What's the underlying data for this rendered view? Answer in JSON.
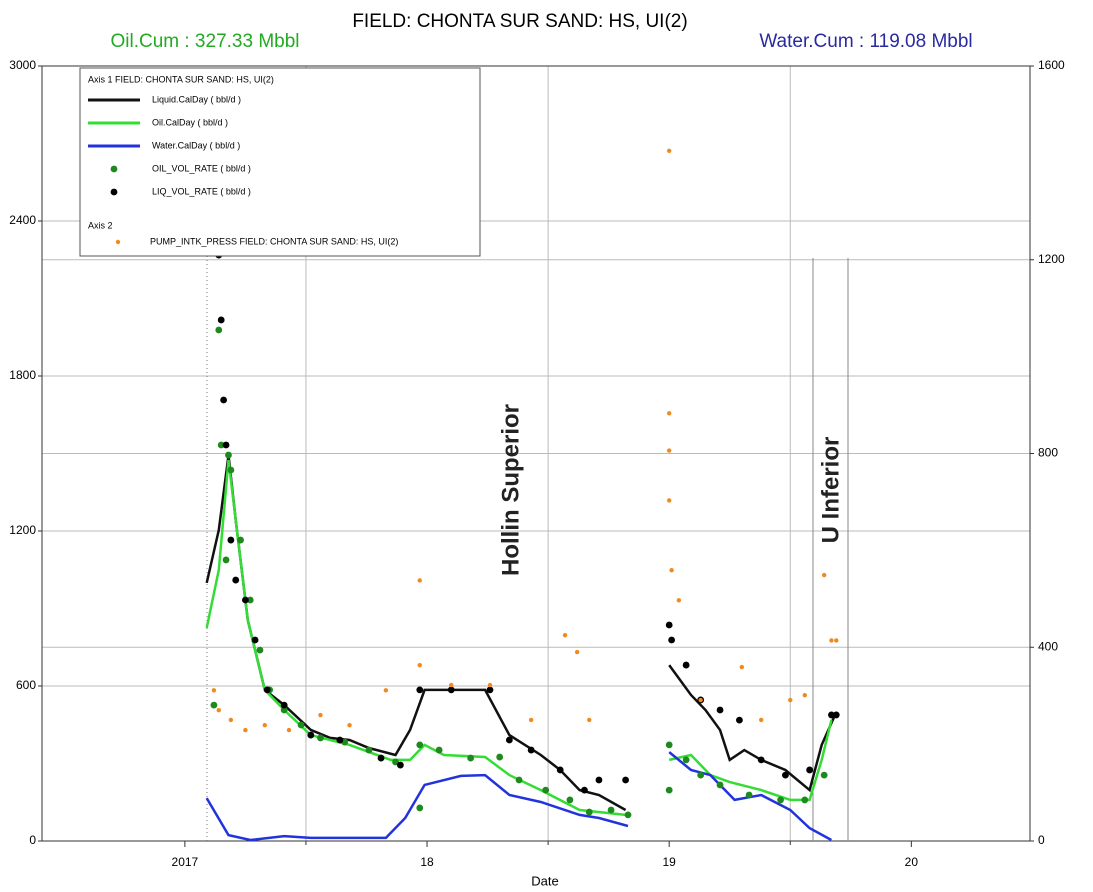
{
  "chart_data": {
    "type": "line",
    "title": "FIELD: CHONTA SUR  SAND: HS, UI(2)",
    "oil_cum": "Oil.Cum : 327.33 Mbbl",
    "water_cum": "Water.Cum : 119.08 Mbbl",
    "xlabel": "Date",
    "annotations": [
      "Hollin Superior",
      "U Inferior"
    ],
    "legend_axis1": "Axis 1  FIELD: CHONTA SUR  SAND: HS, UI(2)",
    "legend_axis2": "Axis 2",
    "xlim": [
      2016.41,
      2020.49
    ],
    "xticks": [
      {
        "value": 2017,
        "label": "2017"
      },
      {
        "value": 2018,
        "label": "18"
      },
      {
        "value": 2019,
        "label": "19"
      },
      {
        "value": 2020,
        "label": "20"
      }
    ],
    "xgrid": [
      2017.5,
      2018.5,
      2019.5
    ],
    "ylim": [
      0,
      3000
    ],
    "yticks": [
      0,
      600,
      1200,
      1800,
      2400,
      3000
    ],
    "y2lim": [
      0,
      1600
    ],
    "y2ticks": [
      0,
      400,
      800,
      1200,
      1600
    ],
    "grid": true,
    "series": [
      {
        "name": "Liquid.CalDay ( bbl/d )",
        "type": "line",
        "color": "#111111",
        "x": [
          2017.09,
          2017.14,
          2017.18,
          2017.21,
          2017.26,
          2017.33,
          2017.41,
          2017.52,
          2017.6,
          2017.68,
          2017.76,
          2017.87,
          2017.93,
          2017.99,
          2018.24,
          2018.34,
          2018.47,
          2018.55,
          2018.63,
          2018.71,
          2018.82,
          2018.9,
          2019.0,
          2019.09,
          2019.15,
          2019.21,
          2019.25,
          2019.31,
          2019.38,
          2019.48,
          2019.58,
          2019.63,
          2019.69
        ],
        "values": [
          999,
          1204,
          1494,
          1243,
          855,
          585,
          526,
          430,
          399,
          391,
          360,
          333,
          430,
          585,
          585,
          410,
          333,
          275,
          197,
          178,
          120,
          null,
          681,
          565,
          507,
          430,
          314,
          352,
          314,
          275,
          197,
          372,
          499
        ]
      },
      {
        "name": "Oil.CalDay ( bbl/d )",
        "type": "line",
        "color": "#33dd33",
        "x": [
          2017.09,
          2017.14,
          2017.18,
          2017.26,
          2017.33,
          2017.41,
          2017.52,
          2017.68,
          2017.85,
          2017.93,
          2017.99,
          2018.07,
          2018.24,
          2018.34,
          2018.47,
          2018.63,
          2018.82,
          2018.9,
          2019.0,
          2019.09,
          2019.17,
          2019.25,
          2019.38,
          2019.5,
          2019.58,
          2019.63,
          2019.67
        ],
        "values": [
          825,
          1049,
          1475,
          855,
          585,
          507,
          410,
          372,
          314,
          314,
          372,
          333,
          325,
          255,
          197,
          120,
          101,
          null,
          314,
          333,
          255,
          228,
          197,
          159,
          159,
          314,
          468
        ]
      },
      {
        "name": "Water.CalDay ( bbl/d )",
        "type": "line",
        "color": "#2233dd",
        "x": [
          2017.09,
          2017.18,
          2017.27,
          2017.41,
          2017.52,
          2017.83,
          2017.91,
          2017.99,
          2018.14,
          2018.24,
          2018.34,
          2018.47,
          2018.63,
          2018.71,
          2018.83,
          2018.9,
          2019.0,
          2019.09,
          2019.17,
          2019.27,
          2019.38,
          2019.5,
          2019.58,
          2019.67
        ],
        "values": [
          166,
          23,
          4,
          19,
          12,
          12,
          89,
          217,
          252,
          255,
          178,
          151,
          101,
          89,
          58,
          null,
          344,
          275,
          255,
          159,
          178,
          120,
          50,
          4
        ]
      },
      {
        "name": "OIL_VOL_RATE ( bbl/d )",
        "type": "scatter",
        "color": "#1e8a1e",
        "x": [
          2017.12,
          2017.14,
          2017.15,
          2017.17,
          2017.18,
          2017.19,
          2017.23,
          2017.27,
          2017.31,
          2017.35,
          2017.41,
          2017.48,
          2017.56,
          2017.66,
          2017.76,
          2017.87,
          2017.97,
          2017.97,
          2018.05,
          2018.18,
          2018.3,
          2018.38,
          2018.49,
          2018.59,
          2018.67,
          2018.76,
          2018.83,
          2019.0,
          2019.0,
          2019.07,
          2019.13,
          2019.21,
          2019.33,
          2019.46,
          2019.56,
          2019.64
        ],
        "values": [
          526,
          1978,
          1533,
          1088,
          1494,
          1436,
          1165,
          933,
          739,
          585,
          507,
          449,
          399,
          383,
          352,
          306,
          372,
          128,
          352,
          321,
          325,
          236,
          197,
          159,
          112,
          120,
          101,
          197,
          372,
          314,
          255,
          217,
          178,
          159,
          159,
          255
        ]
      },
      {
        "name": "LIQ_VOL_RATE ( bbl/d )",
        "type": "scatter",
        "color": "#000000",
        "x": [
          2017.14,
          2017.15,
          2017.16,
          2017.17,
          2017.19,
          2017.21,
          2017.25,
          2017.29,
          2017.34,
          2017.41,
          2017.52,
          2017.64,
          2017.81,
          2017.89,
          2017.97,
          2018.1,
          2018.26,
          2018.34,
          2018.43,
          2018.55,
          2018.65,
          2018.71,
          2018.82,
          2019.0,
          2019.01,
          2019.07,
          2019.13,
          2019.21,
          2019.29,
          2019.38,
          2019.48,
          2019.58,
          2019.67,
          2019.69
        ],
        "values": [
          2268,
          2017,
          1707,
          1533,
          1165,
          1010,
          933,
          778,
          585,
          526,
          410,
          391,
          321,
          294,
          585,
          585,
          585,
          391,
          352,
          275,
          197,
          236,
          236,
          836,
          778,
          681,
          546,
          507,
          468,
          314,
          255,
          275,
          488,
          488
        ]
      },
      {
        "name": "PUMP_INTK_PRESS FIELD: CHONTA SUR  SAND: HS, UI(2)",
        "type": "scatter",
        "axis": "y2",
        "color": "#f08a1e",
        "x": [
          2017.12,
          2017.14,
          2017.14,
          2017.19,
          2017.25,
          2017.33,
          2017.43,
          2017.56,
          2017.68,
          2017.83,
          2017.97,
          2017.97,
          2018.1,
          2018.26,
          2018.43,
          2018.57,
          2018.62,
          2018.67,
          2019.0,
          2019.0,
          2019.0,
          2019.0,
          2019.01,
          2019.04,
          2019.13,
          2019.3,
          2019.38,
          2019.5,
          2019.56,
          2019.64,
          2019.67,
          2019.69
        ],
        "values": [
          311,
          1590,
          270,
          250,
          229,
          239,
          229,
          260,
          239,
          311,
          538,
          363,
          322,
          322,
          250,
          425,
          390,
          250,
          1425,
          883,
          806,
          703,
          559,
          497,
          291,
          359,
          250,
          291,
          301,
          549,
          414,
          414
        ]
      }
    ]
  }
}
